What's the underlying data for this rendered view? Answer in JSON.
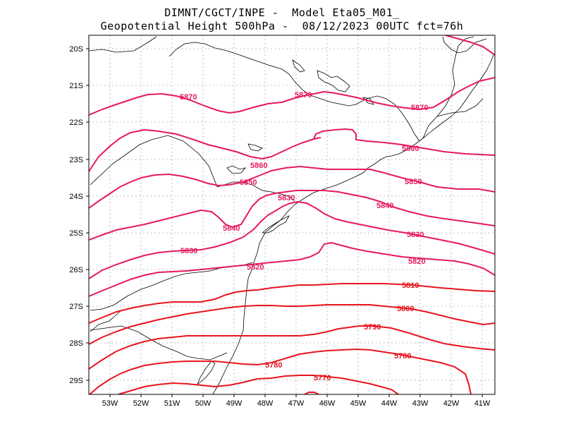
{
  "title": {
    "line1": "DIMNT/CGCT/INPE -  Model Eta05_M01_",
    "line2": "Geopotential Height 500hPa -  08/12/2023 00UTC fct=76h"
  },
  "axes": {
    "lat_labels": [
      "20S",
      "21S",
      "22S",
      "23S",
      "24S",
      "25S",
      "26S",
      "27S",
      "28S",
      "29S"
    ],
    "lon_labels": [
      "53W",
      "52W",
      "51W",
      "50W",
      "49W",
      "48W",
      "47W",
      "46W",
      "45W",
      "44W",
      "43W",
      "42W",
      "41W"
    ]
  },
  "colors": {
    "high": "#e6195a",
    "low": "#e8141e",
    "coast": "#000000",
    "grid": "#888888"
  },
  "contours": [
    {
      "value": "5870",
      "color": "#e6195a"
    },
    {
      "value": "5860",
      "color": "#e6195a"
    },
    {
      "value": "5850",
      "color": "#e6195a"
    },
    {
      "value": "5840",
      "color": "#e6195a"
    },
    {
      "value": "5830",
      "color": "#e6195a"
    },
    {
      "value": "5820",
      "color": "#e6195a"
    },
    {
      "value": "5810",
      "color": "#e8141e"
    },
    {
      "value": "5800",
      "color": "#e8141e"
    },
    {
      "value": "5790",
      "color": "#e8141e"
    },
    {
      "value": "5780",
      "color": "#e8141e"
    },
    {
      "value": "5770",
      "color": "#e8141e"
    }
  ],
  "chart_data": {
    "type": "contour-map",
    "title": "Geopotential Height 500hPa",
    "variable": "geopotential height (gpm)",
    "contour_interval": 10,
    "lon_range": [
      -53.6,
      -40.6
    ],
    "lat_range": [
      -29.4,
      -19.7
    ],
    "levels": [
      5770,
      5780,
      5790,
      5800,
      5810,
      5820,
      5830,
      5840,
      5850,
      5860,
      5870
    ],
    "labels": [
      {
        "text": "5870",
        "lon": -50.6,
        "lat": -21.4
      },
      {
        "text": "5870",
        "lon": -47.0,
        "lat": -21.3
      },
      {
        "text": "5870",
        "lon": -43.3,
        "lat": -21.6
      },
      {
        "text": "5860",
        "lon": -48.3,
        "lat": -23.2
      },
      {
        "text": "5860",
        "lon": -43.3,
        "lat": -22.7
      },
      {
        "text": "5850",
        "lon": -48.4,
        "lat": -23.6
      },
      {
        "text": "5850",
        "lon": -43.6,
        "lat": -23.6
      },
      {
        "text": "5840",
        "lon": -49.4,
        "lat": -24.9
      },
      {
        "text": "5840",
        "lon": -44.3,
        "lat": -24.2
      },
      {
        "text": "5830",
        "lon": -47.1,
        "lat": -24.0
      },
      {
        "text": "5830",
        "lon": -50.3,
        "lat": -25.5
      },
      {
        "text": "5830",
        "lon": -43.8,
        "lat": -25.1
      },
      {
        "text": "5820",
        "lon": -48.5,
        "lat": -26.0
      },
      {
        "text": "5820",
        "lon": -43.8,
        "lat": -25.8
      },
      {
        "text": "5810",
        "lon": -43.8,
        "lat": -26.5
      },
      {
        "text": "5800",
        "lon": -44.1,
        "lat": -27.1
      },
      {
        "text": "5790",
        "lon": -45.1,
        "lat": -27.6
      },
      {
        "text": "5780",
        "lon": -48.2,
        "lat": -28.6
      },
      {
        "text": "5780",
        "lon": -43.8,
        "lat": -28.3
      },
      {
        "text": "5770",
        "lon": -46.6,
        "lat": -28.9
      }
    ]
  }
}
